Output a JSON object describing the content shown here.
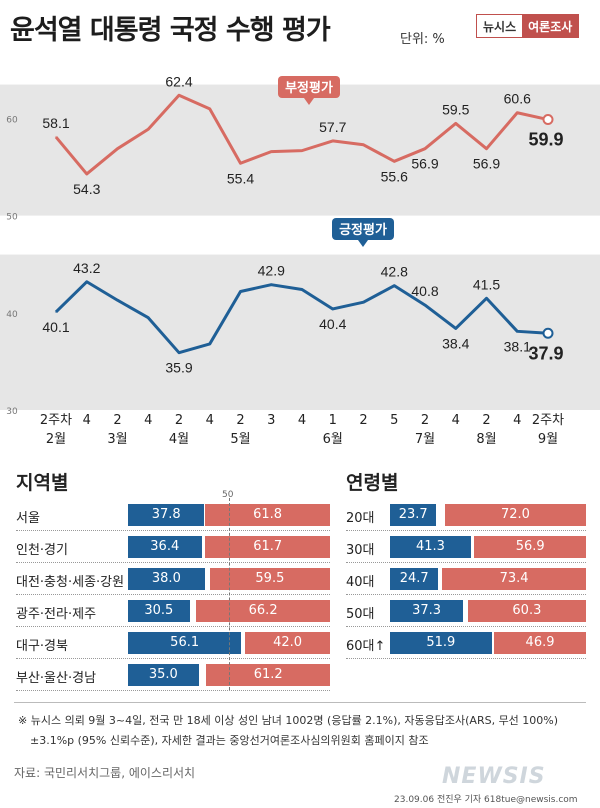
{
  "header": {
    "title": "윤석열 대통령 국정 수행 평가",
    "unit": "단위: %",
    "brand_left": "뉴시스",
    "brand_right": "여론조사"
  },
  "chart_data": [
    {
      "type": "line",
      "title": "윤석열 대통령 국정 수행 평가",
      "x_tick_labels": [
        "2주차",
        "4",
        "2",
        "4",
        "2",
        "4",
        "2",
        "3",
        "4",
        "1",
        "2",
        "5",
        "2",
        "4",
        "2",
        "4",
        "2주차"
      ],
      "month_labels": [
        "2월",
        "3월",
        "4월",
        "5월",
        "6월",
        "7월",
        "8월",
        "9월"
      ],
      "ylim": [
        30,
        65
      ],
      "yticks": [
        30,
        40,
        50,
        60
      ],
      "grid": false,
      "series": [
        {
          "name": "부정평가",
          "color": "#d76b62",
          "values": [
            58.1,
            54.3,
            56.9,
            58.9,
            62.4,
            61.0,
            55.4,
            56.6,
            56.7,
            57.7,
            57.3,
            55.6,
            56.9,
            59.5,
            56.9,
            60.6,
            59.9
          ],
          "labeled": [
            {
              "i": 0,
              "text": "58.1"
            },
            {
              "i": 1,
              "text": "54.3"
            },
            {
              "i": 4,
              "text": "62.4"
            },
            {
              "i": 6,
              "text": "55.4"
            },
            {
              "i": 9,
              "text": "57.7"
            },
            {
              "i": 11,
              "text": "55.6"
            },
            {
              "i": 12,
              "text": "56.9"
            },
            {
              "i": 13,
              "text": "59.5"
            },
            {
              "i": 14,
              "text": "56.9"
            },
            {
              "i": 15,
              "text": "60.6"
            },
            {
              "i": 16,
              "text": "59.9"
            }
          ]
        },
        {
          "name": "긍정평가",
          "color": "#1f5f96",
          "values": [
            40.1,
            43.2,
            41.3,
            39.5,
            35.9,
            36.8,
            42.2,
            42.9,
            42.4,
            40.4,
            41.1,
            42.8,
            40.8,
            38.4,
            41.5,
            38.1,
            37.9
          ],
          "labeled": [
            {
              "i": 0,
              "text": "40.1"
            },
            {
              "i": 1,
              "text": "43.2"
            },
            {
              "i": 4,
              "text": "35.9"
            },
            {
              "i": 7,
              "text": "42.9"
            },
            {
              "i": 9,
              "text": "40.4"
            },
            {
              "i": 11,
              "text": "42.8"
            },
            {
              "i": 12,
              "text": "40.8"
            },
            {
              "i": 13,
              "text": "38.4"
            },
            {
              "i": 14,
              "text": "41.5"
            },
            {
              "i": 15,
              "text": "38.1"
            },
            {
              "i": 16,
              "text": "37.9"
            }
          ]
        }
      ]
    },
    {
      "type": "bar",
      "title": "지역별",
      "scale_label": "50",
      "categories": [
        "서울",
        "인천·경기",
        "대전·충청·세종·강원",
        "광주·전라·제주",
        "대구·경북",
        "부산·울산·경남"
      ],
      "series": [
        {
          "name": "긍정평가",
          "color": "#1f5f96",
          "values": [
            37.8,
            36.4,
            38.0,
            30.5,
            56.1,
            35.0
          ]
        },
        {
          "name": "부정평가",
          "color": "#d76b62",
          "values": [
            61.8,
            61.7,
            59.5,
            66.2,
            42.0,
            61.2
          ]
        }
      ]
    },
    {
      "type": "bar",
      "title": "연령별",
      "categories": [
        "20대",
        "30대",
        "40대",
        "50대",
        "60대↑"
      ],
      "series": [
        {
          "name": "긍정평가",
          "color": "#1f5f96",
          "values": [
            23.7,
            41.3,
            24.7,
            37.3,
            51.9
          ]
        },
        {
          "name": "부정평가",
          "color": "#d76b62",
          "values": [
            72.0,
            56.9,
            73.4,
            60.3,
            46.9
          ]
        }
      ]
    }
  ],
  "footer": {
    "note1": "※  뉴시스 의뢰 9월 3~4일, 전국 만 18세 이상 성인 남녀 1002명 (응답률 2.1%), 자동응답조사(ARS, 무선 100%)",
    "note2": "±3.1%p (95% 신뢰수준), 자세한 결과는 중앙선거여론조사심의위원회 홈페이지 참조",
    "source": "자료: 국민리서치그룹, 에이스리서치",
    "credit": "23.09.06 전진우 기자 618tue@newsis.com",
    "watermark": "NEWSIS"
  }
}
